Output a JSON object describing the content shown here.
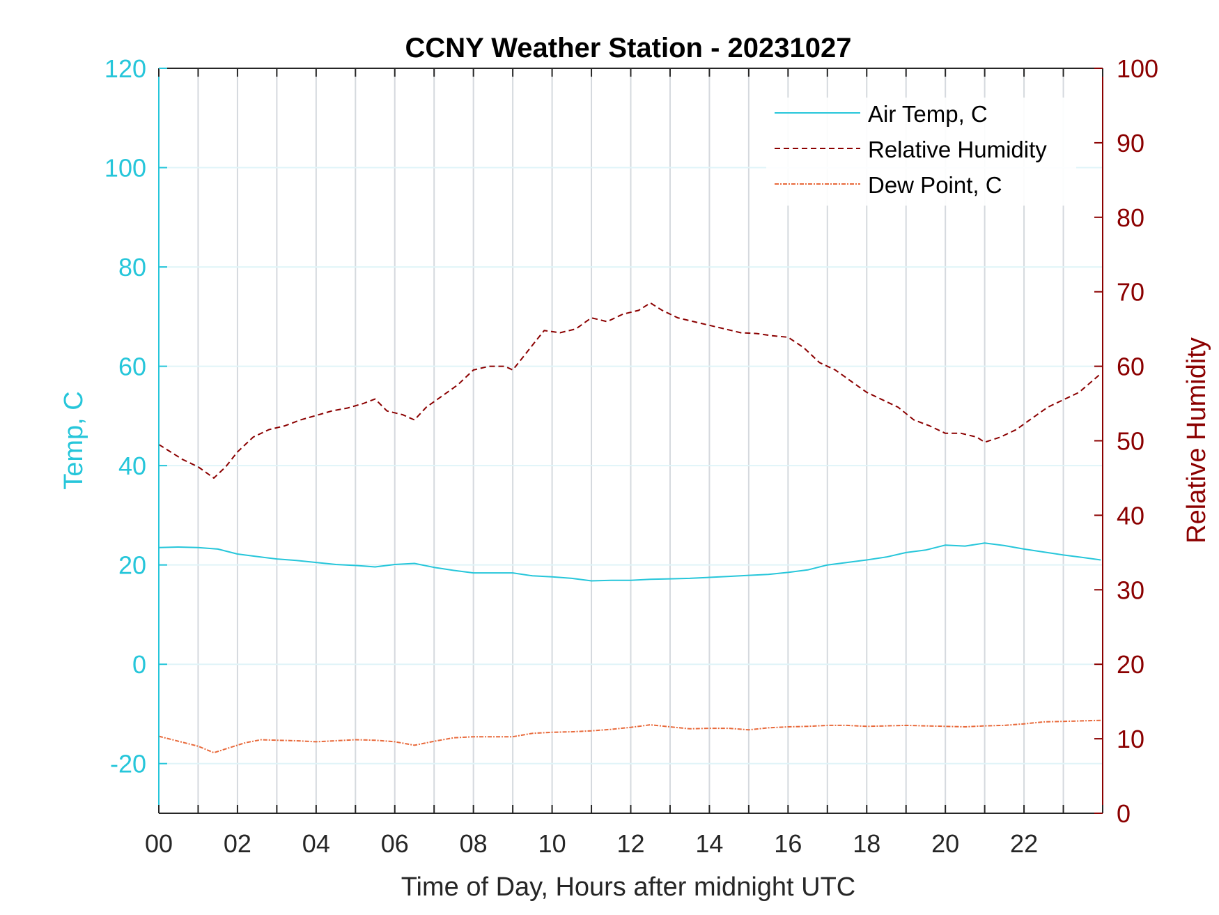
{
  "chart_data": {
    "type": "line",
    "title": "CCNY Weather Station - 20231027",
    "xlabel": "Time of Day, Hours after midnight UTC",
    "ylabel_left": "Temp, C",
    "ylabel_right": "Relative Humidity",
    "xlim": [
      0,
      24
    ],
    "ylim_left": [
      -30,
      120
    ],
    "ylim_right": [
      0,
      100
    ],
    "x_ticks": [
      "00",
      "02",
      "04",
      "06",
      "08",
      "10",
      "12",
      "14",
      "16",
      "18",
      "20",
      "22"
    ],
    "x_tick_values": [
      0,
      2,
      4,
      6,
      8,
      10,
      12,
      14,
      16,
      18,
      20,
      22
    ],
    "y_left_ticks": [
      "-20",
      "0",
      "20",
      "40",
      "60",
      "80",
      "100",
      "120"
    ],
    "y_left_tick_values": [
      -20,
      0,
      20,
      40,
      60,
      80,
      100,
      120
    ],
    "y_right_ticks": [
      "0",
      "10",
      "20",
      "30",
      "40",
      "50",
      "60",
      "70",
      "80",
      "90",
      "100"
    ],
    "y_right_tick_values": [
      0,
      10,
      20,
      30,
      40,
      50,
      60,
      70,
      80,
      90,
      100
    ],
    "grid": true,
    "legend_position": "top-right",
    "colors": {
      "air_temp": "#26C6DA",
      "relative_humidity": "#8B0000",
      "dew_point": "#E8693A",
      "grid_vertical": "#D5D9DE",
      "grid_horizontal": "#E0F4F8"
    },
    "series": [
      {
        "name": "Air Temp, C",
        "axis": "left",
        "style": "solid",
        "x": [
          0,
          0.5,
          1,
          1.5,
          2,
          2.5,
          3,
          3.5,
          4,
          4.5,
          5,
          5.5,
          6,
          6.5,
          7,
          7.5,
          8,
          8.5,
          9,
          9.5,
          10,
          10.5,
          11,
          11.5,
          12,
          12.5,
          13,
          13.5,
          14,
          14.5,
          15,
          15.5,
          16,
          16.5,
          17,
          17.5,
          18,
          18.5,
          19,
          19.5,
          20,
          20.5,
          21,
          21.5,
          22,
          22.5,
          23,
          23.5,
          23.95
        ],
        "y": [
          23.5,
          23.6,
          23.5,
          23.2,
          22.2,
          21.7,
          21.2,
          20.9,
          20.5,
          20.1,
          19.9,
          19.6,
          20.1,
          20.3,
          19.5,
          18.9,
          18.4,
          18.4,
          18.4,
          17.8,
          17.6,
          17.3,
          16.8,
          16.9,
          16.9,
          17.1,
          17.2,
          17.3,
          17.5,
          17.7,
          17.9,
          18.1,
          18.5,
          19.0,
          20.0,
          20.5,
          21.0,
          21.6,
          22.5,
          23.0,
          24.0,
          23.8,
          24.4,
          23.9,
          23.2,
          22.6,
          22.0,
          21.5,
          21.0
        ]
      },
      {
        "name": "Relative Humidity",
        "axis": "right",
        "style": "dashed",
        "x": [
          0,
          0.3,
          0.6,
          1,
          1.4,
          1.7,
          2,
          2.4,
          2.8,
          3.2,
          3.6,
          4,
          4.4,
          4.8,
          5.2,
          5.5,
          5.8,
          6.2,
          6.5,
          6.8,
          7.2,
          7.6,
          8,
          8.4,
          8.8,
          9,
          9.3,
          9.6,
          9.8,
          10.2,
          10.6,
          11,
          11.4,
          11.8,
          12.2,
          12.5,
          12.8,
          13.2,
          13.6,
          14,
          14.4,
          14.8,
          15.2,
          15.6,
          16,
          16.4,
          16.8,
          17.2,
          17.6,
          18,
          18.4,
          18.8,
          19.2,
          19.6,
          20,
          20.4,
          20.8,
          21,
          21.4,
          21.8,
          22.2,
          22.6,
          23,
          23.4,
          23.95
        ],
        "y": [
          49.5,
          48.5,
          47.5,
          46.5,
          45,
          46.5,
          48.5,
          50.5,
          51.5,
          52,
          52.8,
          53.4,
          54,
          54.4,
          55,
          55.6,
          54,
          53.5,
          52.8,
          54.5,
          56,
          57.5,
          59.5,
          60,
          60,
          59.5,
          61.5,
          63.5,
          64.8,
          64.5,
          65,
          66.5,
          66,
          67,
          67.5,
          68.5,
          67.5,
          66.5,
          66,
          65.5,
          65,
          64.5,
          64.4,
          64.1,
          63.9,
          62.5,
          60.5,
          59.5,
          58,
          56.5,
          55.5,
          54.5,
          52.8,
          52,
          51,
          51,
          50.5,
          49.8,
          50.5,
          51.5,
          53,
          54.5,
          55.5,
          56.5,
          59
        ]
      },
      {
        "name": "Dew Point, C",
        "axis": "left",
        "style": "dashdot",
        "x": [
          0,
          0.5,
          1,
          1.4,
          1.8,
          2.2,
          2.6,
          3,
          3.5,
          4,
          4.5,
          5,
          5.5,
          6,
          6.5,
          7,
          7.5,
          8,
          8.5,
          9,
          9.5,
          10,
          10.5,
          11,
          11.5,
          12,
          12.5,
          13,
          13.5,
          14,
          14.5,
          15,
          15.5,
          16,
          16.5,
          17,
          17.5,
          18,
          18.5,
          19,
          19.5,
          20,
          20.5,
          21,
          21.5,
          22,
          22.5,
          23,
          23.5,
          23.95
        ],
        "y": [
          -14.5,
          -15.5,
          -16.5,
          -17.8,
          -16.8,
          -15.8,
          -15.2,
          -15.3,
          -15.4,
          -15.6,
          -15.4,
          -15.2,
          -15.3,
          -15.6,
          -16.3,
          -15.5,
          -14.8,
          -14.6,
          -14.6,
          -14.6,
          -13.9,
          -13.7,
          -13.6,
          -13.4,
          -13.1,
          -12.7,
          -12.2,
          -12.6,
          -13,
          -12.9,
          -12.9,
          -13.2,
          -12.8,
          -12.6,
          -12.5,
          -12.3,
          -12.3,
          -12.5,
          -12.4,
          -12.3,
          -12.4,
          -12.5,
          -12.6,
          -12.4,
          -12.3,
          -12,
          -11.6,
          -11.5,
          -11.4,
          -11.3
        ]
      }
    ]
  }
}
